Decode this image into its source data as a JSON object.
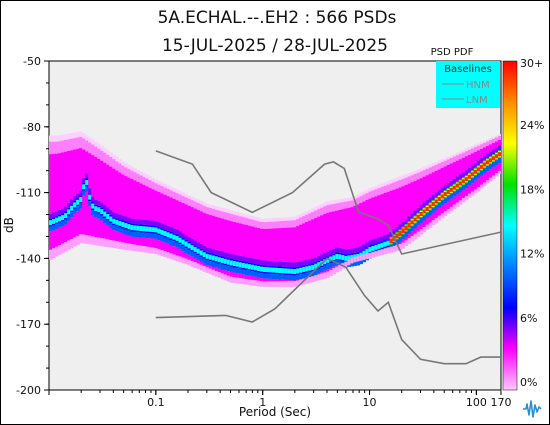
{
  "chart_data": {
    "type": "heatmap",
    "title": "5A.ECHAL.--.EH2 : 566 PSDs",
    "subtitle": "15-JUL-2025 / 28-JUL-2025",
    "xlabel": "Period (Sec)",
    "ylabel": "dB",
    "x_scale": "log",
    "xlim": [
      0.01,
      170
    ],
    "ylim": [
      -200,
      -50
    ],
    "x_ticks": [
      {
        "value": 0.1,
        "label": "0.1"
      },
      {
        "value": 1,
        "label": "1"
      },
      {
        "value": 10,
        "label": "10"
      },
      {
        "value": 100,
        "label": "100"
      },
      {
        "value": 170,
        "label": "170"
      }
    ],
    "y_ticks": [
      {
        "value": -50,
        "label": "-50"
      },
      {
        "value": -80,
        "label": "-80"
      },
      {
        "value": -110,
        "label": "-110"
      },
      {
        "value": -140,
        "label": "-140"
      },
      {
        "value": -170,
        "label": "-170"
      },
      {
        "value": -200,
        "label": "-200"
      }
    ],
    "colorbar": {
      "title": "PSD PDF",
      "ticks": [
        "30+",
        "24%",
        "18%",
        "12%",
        "6%",
        "0%"
      ],
      "colors": [
        "#ff0000",
        "#ff8c00",
        "#ffff00",
        "#00e000",
        "#00ffff",
        "#0080ff",
        "#0000ff",
        "#ff00ff",
        "#ffc8ff"
      ]
    },
    "legend": {
      "title": "Baselines",
      "position": "top-right",
      "background": "#00ffff",
      "entries": [
        "HNM",
        "LNM"
      ]
    },
    "baselines": {
      "HNM": [
        [
          0.1,
          -91
        ],
        [
          0.22,
          -97
        ],
        [
          0.33,
          -110
        ],
        [
          0.8,
          -119
        ],
        [
          1.9,
          -110
        ],
        [
          3.8,
          -97
        ],
        [
          4.6,
          -96
        ],
        [
          5.8,
          -99
        ],
        [
          7.9,
          -119
        ],
        [
          12,
          -122
        ],
        [
          15,
          -125
        ],
        [
          20,
          -138
        ],
        [
          170,
          -128
        ]
      ],
      "LNM": [
        [
          0.1,
          -167
        ],
        [
          0.45,
          -166
        ],
        [
          0.8,
          -169
        ],
        [
          1.3,
          -163
        ],
        [
          4,
          -140
        ],
        [
          6,
          -144
        ],
        [
          9,
          -157
        ],
        [
          12,
          -164
        ],
        [
          15,
          -160
        ],
        [
          20,
          -177
        ],
        [
          30,
          -186
        ],
        [
          50,
          -188
        ],
        [
          80,
          -188
        ],
        [
          110,
          -185
        ],
        [
          170,
          -185
        ]
      ]
    },
    "mode_curve": [
      [
        0.01,
        -124
      ],
      [
        0.014,
        -121
      ],
      [
        0.017,
        -116
      ],
      [
        0.02,
        -113
      ],
      [
        0.022,
        -103
      ],
      [
        0.024,
        -112
      ],
      [
        0.026,
        -117
      ],
      [
        0.03,
        -118
      ],
      [
        0.04,
        -123
      ],
      [
        0.06,
        -126
      ],
      [
        0.1,
        -127
      ],
      [
        0.16,
        -131
      ],
      [
        0.2,
        -134
      ],
      [
        0.3,
        -139
      ],
      [
        0.5,
        -142
      ],
      [
        1,
        -145
      ],
      [
        2,
        -146
      ],
      [
        3,
        -144
      ],
      [
        4,
        -141
      ],
      [
        5,
        -139
      ],
      [
        6,
        -140
      ],
      [
        8,
        -139
      ],
      [
        10,
        -136
      ],
      [
        15,
        -133
      ],
      [
        20,
        -128
      ],
      [
        30,
        -120
      ],
      [
        50,
        -111
      ],
      [
        80,
        -104
      ],
      [
        120,
        -97
      ],
      [
        170,
        -92
      ]
    ],
    "pdf_upper_edge": [
      [
        0.012,
        -84
      ],
      [
        0.02,
        -82
      ],
      [
        0.03,
        -88
      ],
      [
        0.05,
        -96
      ],
      [
        0.1,
        -104
      ],
      [
        0.3,
        -115
      ],
      [
        1,
        -122
      ],
      [
        2,
        -121
      ],
      [
        4,
        -114
      ],
      [
        7,
        -112
      ],
      [
        10,
        -108
      ],
      [
        30,
        -99
      ],
      [
        80,
        -90
      ],
      [
        170,
        -83
      ]
    ],
    "pdf_lower_edge": [
      [
        0.01,
        -141
      ],
      [
        0.02,
        -133
      ],
      [
        0.05,
        -136
      ],
      [
        0.1,
        -138
      ],
      [
        0.2,
        -143
      ],
      [
        0.5,
        -151
      ],
      [
        1,
        -153
      ],
      [
        2,
        -153
      ],
      [
        4,
        -149
      ],
      [
        7,
        -142
      ],
      [
        10,
        -140
      ],
      [
        20,
        -136
      ],
      [
        50,
        -121
      ],
      [
        100,
        -110
      ],
      [
        170,
        -101
      ]
    ],
    "background": "#efefef",
    "grid": false
  }
}
